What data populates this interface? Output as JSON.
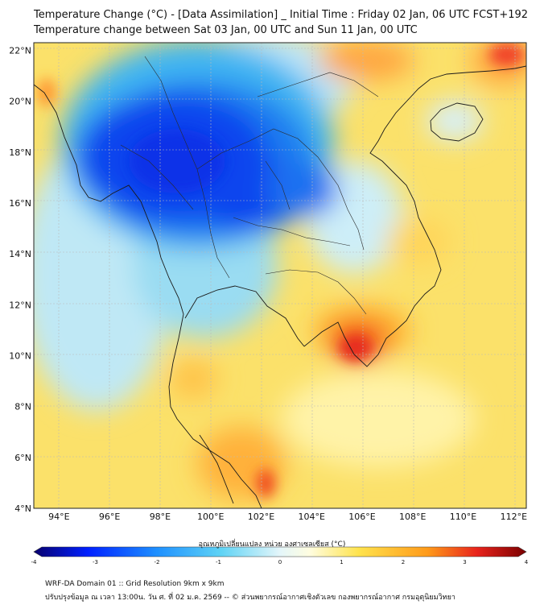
{
  "header": {
    "title_line1": "Temperature Change (°C) - [Data Assimilation] _ Initial Time : Friday 02 Jan, 06 UTC FCST+192",
    "title_line2": "Temperature change between Sat 03 Jan, 00 UTC and Sun 11 Jan, 00 UTC"
  },
  "map": {
    "lon_ticks": [
      "94°E",
      "96°E",
      "98°E",
      "100°E",
      "102°E",
      "104°E",
      "106°E",
      "108°E",
      "110°E",
      "112°E"
    ],
    "lat_ticks": [
      "22°N",
      "20°N",
      "18°N",
      "16°N",
      "14°N",
      "12°N",
      "10°N",
      "8°N",
      "6°N",
      "4°N"
    ],
    "lon_range": [
      93,
      112.5
    ],
    "lat_range": [
      4,
      22.3
    ]
  },
  "colorbar": {
    "title": "อุณหภูมิเปลี่ยนแปลง หน่วย องศาเซลเซียส (°C)",
    "ticks": [
      "-4",
      "-3",
      "-2",
      "-1",
      "0",
      "1",
      "2",
      "3",
      "4"
    ],
    "range": [
      -4,
      4
    ],
    "colors": [
      "#08006e",
      "#0020ff",
      "#1e90ff",
      "#5fd3f5",
      "#e4f6fa",
      "#fffde0",
      "#ffe34d",
      "#ff9a1a",
      "#e8231c",
      "#7a0000"
    ]
  },
  "footer": {
    "line1": "WRF-DA Domain 01 :: Grid Resolution 9km x 9km",
    "line2": "ปรับปรุงข้อมูล ณ เวลา 13:00น. วัน ศ. ที่ 02 ม.ค. 2569 -- © ส่วนพยากรณ์อากาศเชิงตัวเลข กองพยากรณ์อากาศ กรมอุตุนิยมวิทยา"
  }
}
